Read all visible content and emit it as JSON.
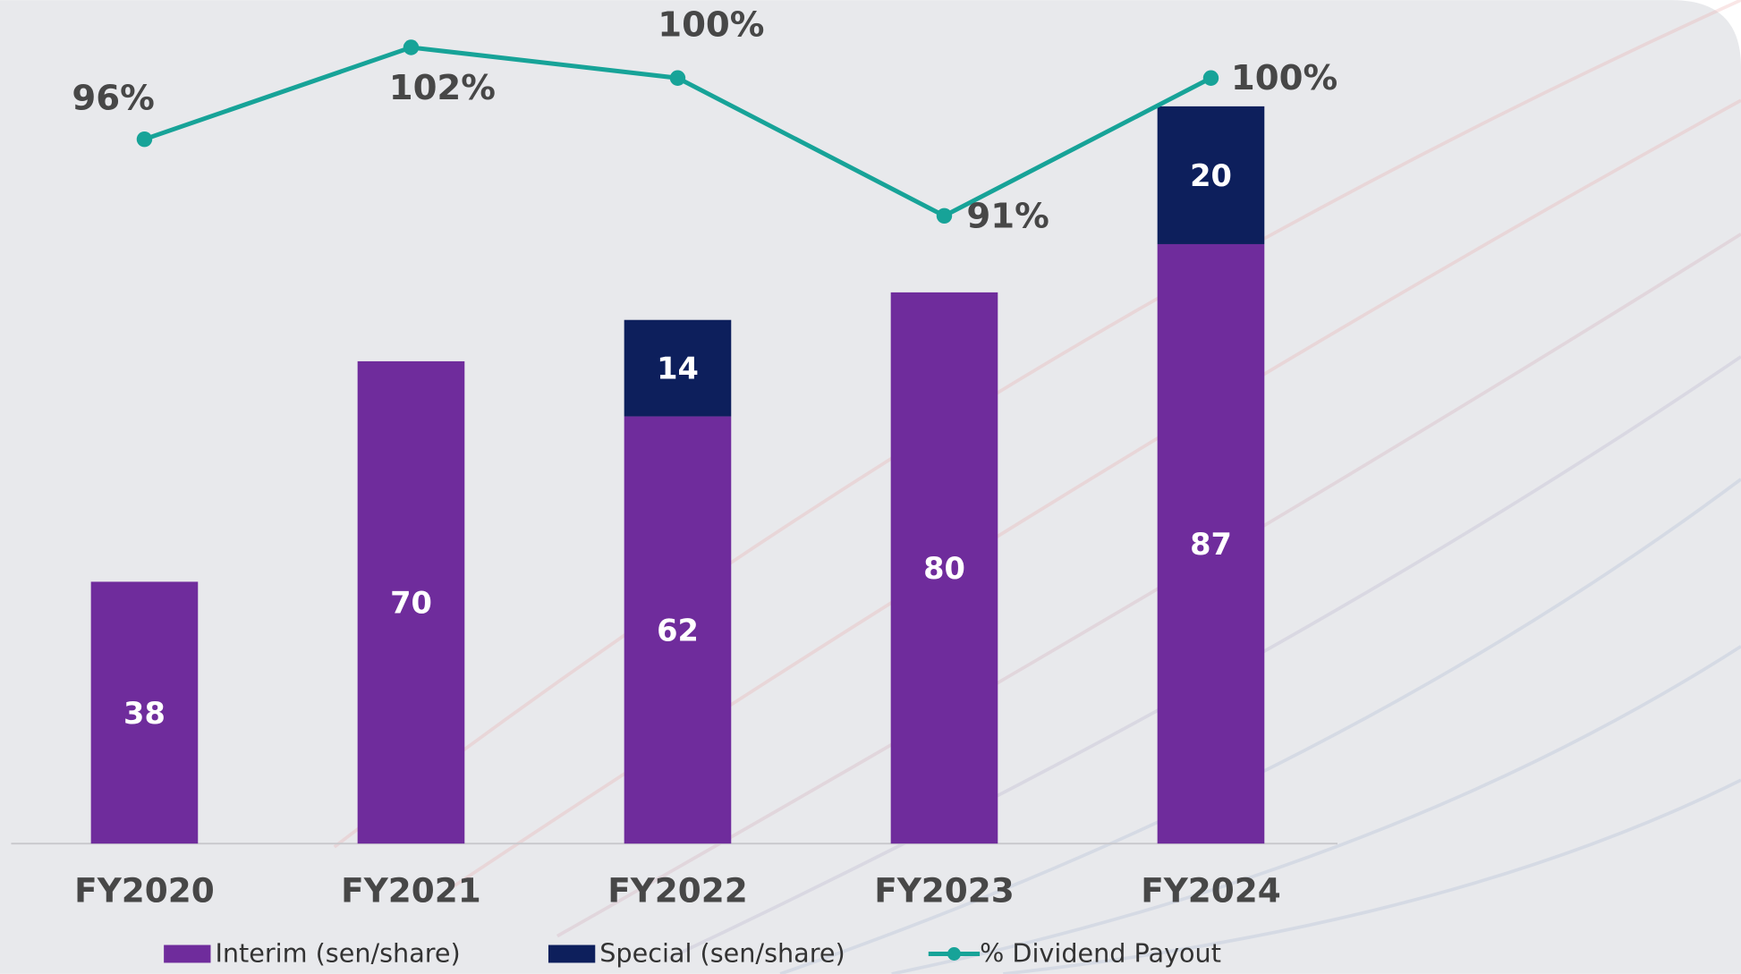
{
  "chart_data": {
    "type": "bar",
    "stacked": true,
    "categories": [
      "FY2020",
      "FY2021",
      "FY2022",
      "FY2023",
      "FY2024"
    ],
    "series": [
      {
        "name": "Interim (sen/share)",
        "type": "bar",
        "color": "#6f2c9c",
        "values": [
          38,
          70,
          62,
          80,
          87
        ]
      },
      {
        "name": "Special (sen/share)",
        "type": "bar",
        "color": "#0d1f5c",
        "values": [
          null,
          null,
          14,
          null,
          20
        ]
      },
      {
        "name": "% Dividend Payout",
        "type": "line",
        "axis": "y2",
        "color": "#17a398",
        "values": [
          96,
          102,
          100,
          91,
          100
        ],
        "value_labels": [
          "96%",
          "102%",
          "100%",
          "91%",
          "100%"
        ]
      }
    ],
    "ylim": [
      0,
      120
    ],
    "y2lim": [
      50,
      104
    ],
    "grid": false,
    "legend": "bottom"
  }
}
